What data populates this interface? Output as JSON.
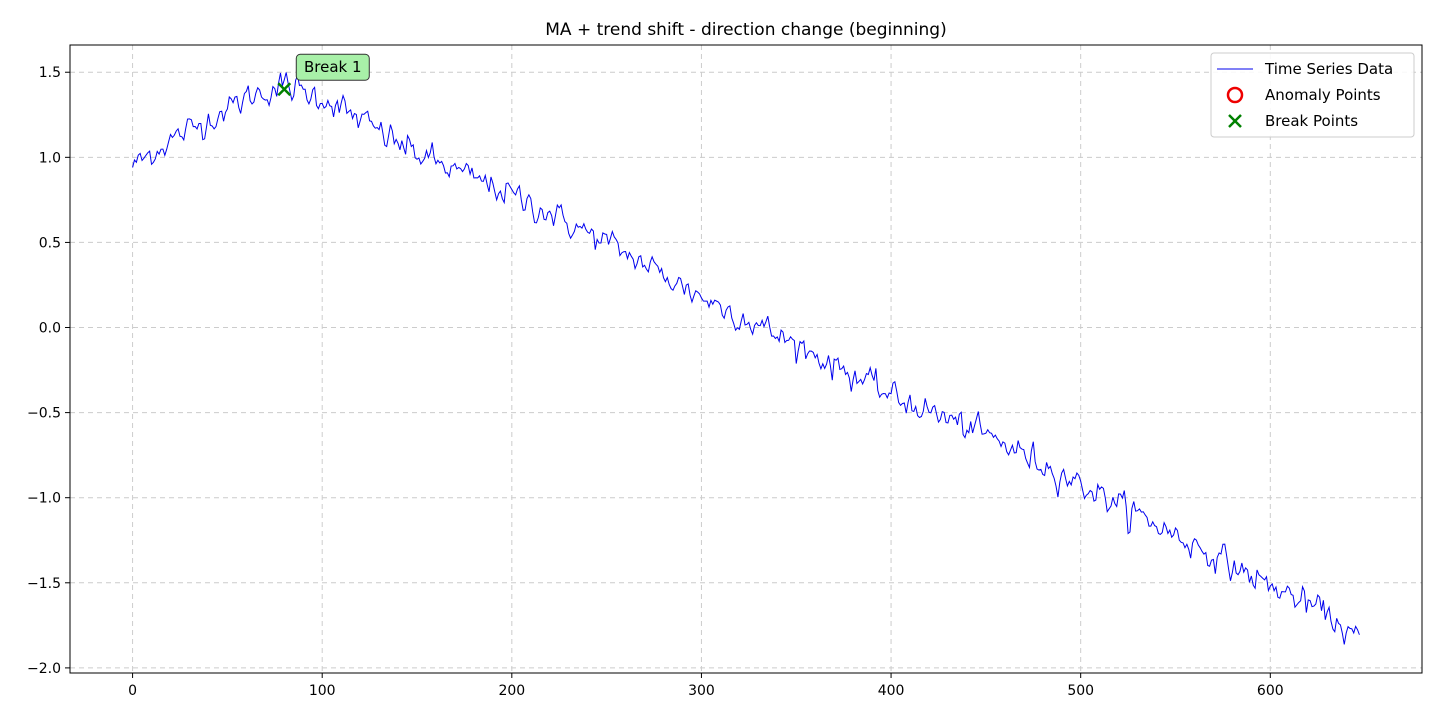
{
  "chart_data": {
    "type": "line",
    "title": "MA + trend shift - direction change (beginning)",
    "xlabel": "",
    "ylabel": "",
    "xlim": [
      -33,
      680
    ],
    "ylim": [
      -2.03,
      1.66
    ],
    "xticks": [
      0,
      100,
      200,
      300,
      400,
      500,
      600
    ],
    "yticks": [
      -2.0,
      -1.5,
      -1.0,
      -0.5,
      0.0,
      0.5,
      1.0,
      1.5
    ],
    "ytick_labels": [
      "−2.0",
      "−1.5",
      "−1.0",
      "−0.5",
      "0.0",
      "0.5",
      "1.0",
      "1.5"
    ],
    "grid": true,
    "legend_position": "top-right",
    "n_points": 648,
    "series": [
      {
        "name": "Time Series Data",
        "color": "#0000ee",
        "description": "rises from about 0.95 at x=0 to peak ~1.45 around x=80, then declines roughly linearly to about -1.85 at x=647, with noise",
        "key_points": [
          [
            0,
            0.95
          ],
          [
            20,
            1.1
          ],
          [
            40,
            1.22
          ],
          [
            60,
            1.35
          ],
          [
            80,
            1.42
          ],
          [
            100,
            1.35
          ],
          [
            120,
            1.22
          ],
          [
            150,
            1.02
          ],
          [
            200,
            0.78
          ],
          [
            250,
            0.5
          ],
          [
            300,
            0.18
          ],
          [
            350,
            -0.1
          ],
          [
            400,
            -0.4
          ],
          [
            450,
            -0.63
          ],
          [
            500,
            -0.92
          ],
          [
            550,
            -1.22
          ],
          [
            600,
            -1.52
          ],
          [
            630,
            -1.68
          ],
          [
            647,
            -1.85
          ]
        ]
      },
      {
        "name": "Anomaly Points",
        "color": "#ee0000",
        "marker": "circle-outline",
        "points": []
      },
      {
        "name": "Break Points",
        "color": "#008000",
        "marker": "x",
        "points": [
          [
            80,
            1.4
          ]
        ]
      }
    ],
    "annotations": [
      {
        "text": "Break 1",
        "x": 80,
        "y": 1.4,
        "bg": "#a8f0a8"
      }
    ]
  }
}
